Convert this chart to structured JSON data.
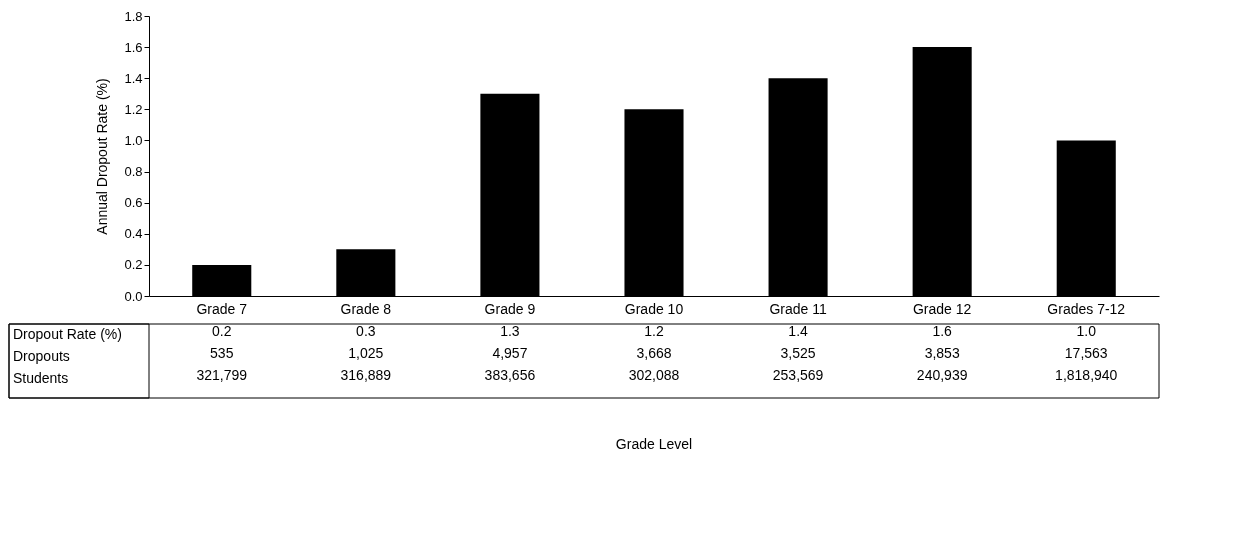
{
  "chart_data": {
    "type": "bar",
    "ylabel": "Annual Dropout Rate (%)",
    "categories": [
      "Grade 7",
      "Grade 8",
      "Grade 9",
      "Grade 10",
      "Grade 11",
      "Grade 12",
      "Grades 7-12"
    ],
    "values": [
      0.2,
      0.3,
      1.3,
      1.2,
      1.4,
      1.6,
      1.0
    ],
    "color": "#000000",
    "value_labels": [
      "0.2",
      "0.3",
      "1.3",
      "1.2",
      "1.4",
      "1.6",
      "1.0"
    ],
    "ylim": [
      0,
      1.8
    ],
    "yticks": [
      {
        "value": 0,
        "label": "0.0"
      },
      0.2,
      0.4,
      0.6,
      0.8,
      {
        "value": 1,
        "label": "1.0"
      },
      1.2,
      1.4,
      1.6,
      1.8
    ],
    "grid": false,
    "annotations": [
      "Dropout Rate (%)",
      "Dropouts",
      "Students",
      "535",
      "1,025",
      "4,957",
      "3,668",
      "3,525",
      "3,853",
      "17,563",
      "321,799",
      "316,889",
      "383,656",
      "302,088",
      "253,569",
      "240,939",
      "1,818,940",
      "Grade Level"
    ]
  }
}
